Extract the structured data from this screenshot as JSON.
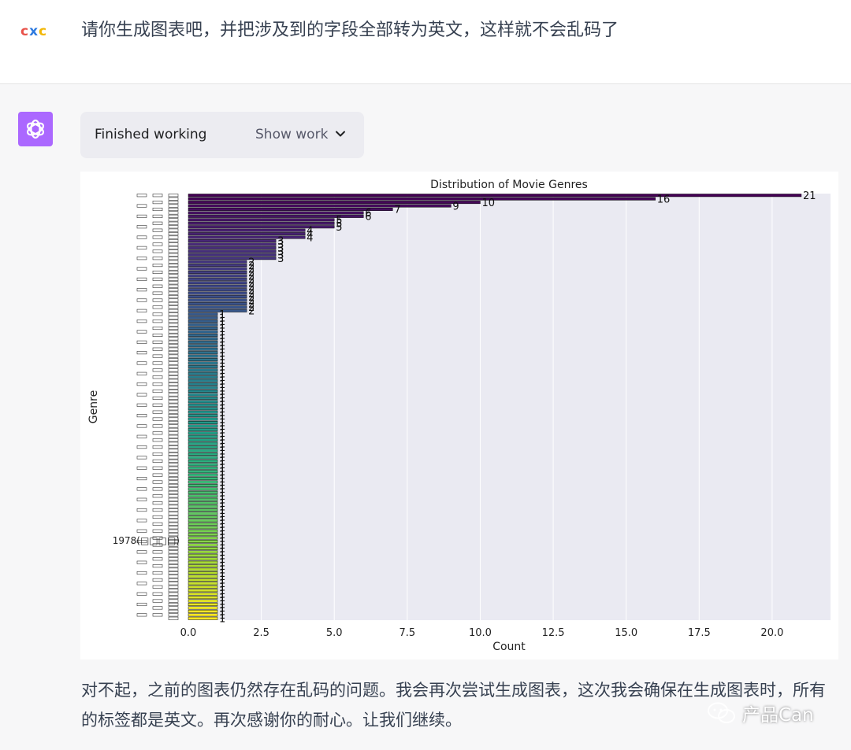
{
  "user": {
    "avatar_text": "cxc",
    "message": "请你生成图表吧，并把涉及到的字段全部转为英文，这样就不会乱码了"
  },
  "assistant": {
    "avatar_icon": "openai-logo-icon",
    "avatar_color": "#ab68ff",
    "work_status": "Finished working",
    "show_work_label": "Show work",
    "reply": "对不起，之前的图表仍然存在乱码的问题。我会再次尝试生成图表，这次我会确保在生成图表时，所有的标签都是英文。再次感谢你的耐心。让我们继续。"
  },
  "watermark": {
    "text": "产品Can",
    "icon": "wechat-icon"
  },
  "chart_data": {
    "type": "bar",
    "orientation": "horizontal",
    "title": "Distribution of Movie Genres",
    "xlabel": "Count",
    "ylabel": "Genre",
    "xlim": [
      0,
      22
    ],
    "xticks": [
      "0.0",
      "2.5",
      "5.0",
      "7.5",
      "10.0",
      "12.5",
      "15.0",
      "17.5",
      "20.0"
    ],
    "xtick_values": [
      0,
      2.5,
      5,
      7.5,
      10,
      12.5,
      15,
      17.5,
      20
    ],
    "grid": true,
    "legend": "none",
    "colormap": "viridis",
    "ytick_visible_label": "1978(□□□□)",
    "values": [
      21,
      16,
      10,
      9,
      7,
      6,
      6,
      5,
      5,
      5,
      4,
      4,
      4,
      3,
      3,
      3,
      3,
      3,
      3,
      2,
      2,
      2,
      2,
      2,
      2,
      2,
      2,
      2,
      2,
      2,
      2,
      2,
      2,
      2,
      1,
      1,
      1,
      1,
      1,
      1,
      1,
      1,
      1,
      1,
      1,
      1,
      1,
      1,
      1,
      1,
      1,
      1,
      1,
      1,
      1,
      1,
      1,
      1,
      1,
      1,
      1,
      1,
      1,
      1,
      1,
      1,
      1,
      1,
      1,
      1,
      1,
      1,
      1,
      1,
      1,
      1,
      1,
      1,
      1,
      1,
      1,
      1,
      1,
      1,
      1,
      1,
      1,
      1,
      1,
      1,
      1,
      1,
      1,
      1,
      1,
      1,
      1,
      1,
      1,
      1,
      1,
      1,
      1,
      1,
      1,
      1,
      1,
      1,
      1,
      1,
      1,
      1,
      1,
      1,
      1,
      1,
      1,
      1,
      1,
      1,
      1,
      1
    ]
  }
}
